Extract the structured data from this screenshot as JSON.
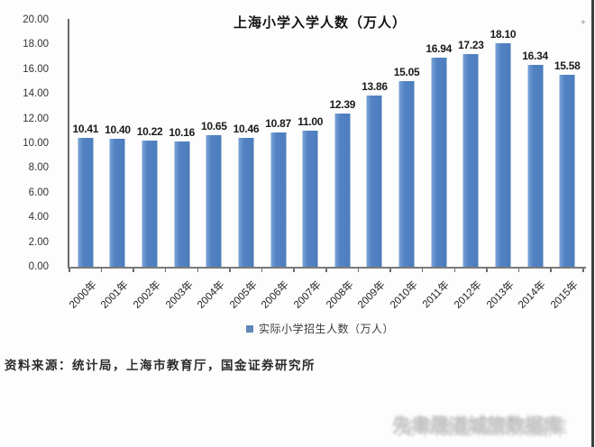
{
  "chart_data": {
    "type": "bar",
    "title": "上海小学入学人数（万人）",
    "categories": [
      "2000年",
      "2001年",
      "2002年",
      "2003年",
      "2004年",
      "2005年",
      "2006年",
      "2007年",
      "2008年",
      "2009年",
      "2010年",
      "2011年",
      "2012年",
      "2013年",
      "2014年",
      "2015年"
    ],
    "series": [
      {
        "name": "实际小学招生人数（万人）",
        "values": [
          10.41,
          10.4,
          10.22,
          10.16,
          10.65,
          10.46,
          10.87,
          11.0,
          12.39,
          13.86,
          15.05,
          16.94,
          17.23,
          18.1,
          16.34,
          15.58
        ]
      }
    ],
    "value_labels": [
      "10.41",
      "10.40",
      "10.22",
      "10.16",
      "10.65",
      "10.46",
      "10.87",
      "11.00",
      "12.39",
      "13.86",
      "15.05",
      "16.94",
      "17.23",
      "18.10",
      "16.34",
      "15.58"
    ],
    "xlabel": "",
    "ylabel": "",
    "ylim": [
      0,
      20
    ],
    "ytick_step": 2,
    "yticks": [
      "20.00",
      "18.00",
      "16.00",
      "14.00",
      "12.00",
      "10.00",
      "8.00",
      "6.00",
      "4.00",
      "2.00",
      "0.00"
    ],
    "grid": false,
    "legend_position": "bottom",
    "bar_color": "#5282c3"
  },
  "legend": {
    "label": "实际小学招生人数（万人）"
  },
  "source_note": "资料来源：统计局，上海市教育厅，国金证券研究所",
  "watermark": {
    "text": "先聿晟道城旅数据库"
  },
  "artifacts": {
    "plus_mark": "+"
  },
  "colors": {
    "bar": "#5282c3",
    "axis": "#6a6a6a",
    "legend_swatch": "#5f87b8",
    "title_text": "#111111",
    "value_label_text": "#1a1a1a"
  }
}
